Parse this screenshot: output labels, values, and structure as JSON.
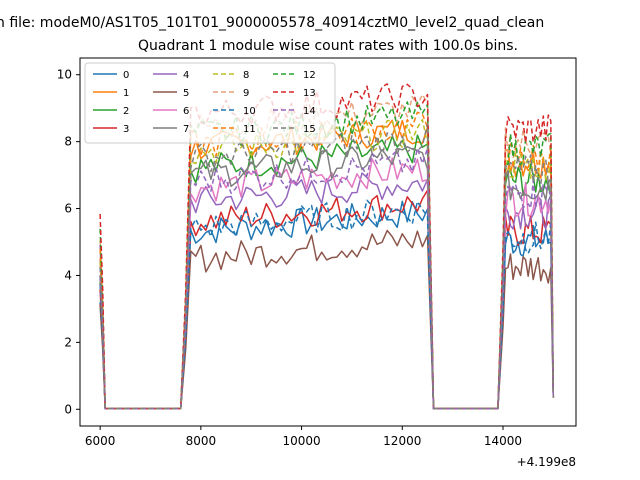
{
  "suptitle": "n file: modeM0/AS1T05_101T01_9000005578_40914cztM0_level2_quad_clean",
  "chart_data": {
    "type": "line",
    "title": "Quadrant 1 module wise count rates with 100.0s bins.",
    "xlabel": "",
    "ylabel": "",
    "x_offset_label": "+4.199e8",
    "xlim": [
      5600,
      15450
    ],
    "ylim": [
      -0.5,
      10.5
    ],
    "xticks": [
      6000,
      8000,
      10000,
      12000,
      14000
    ],
    "yticks": [
      0,
      2,
      4,
      6,
      8,
      10
    ],
    "legend": {
      "placement": "upper-left",
      "ncol": 4
    },
    "segments": [
      {
        "from": 6000,
        "to": 6100,
        "dropTo": 6200
      },
      {
        "from": 7600,
        "to": 12600,
        "riseFrom": 7600
      },
      {
        "from": 13900,
        "to": 15000,
        "riseFrom": 13900
      }
    ],
    "series": [
      {
        "name": "0",
        "color": "#1f77b4",
        "dash": false,
        "level": 5.3,
        "spike": 3.2
      },
      {
        "name": "1",
        "color": "#ff7f0e",
        "dash": false,
        "level": 7.8,
        "spike": 4.0
      },
      {
        "name": "2",
        "color": "#2ca02c",
        "dash": false,
        "level": 7.2,
        "spike": 3.8
      },
      {
        "name": "3",
        "color": "#d62728",
        "dash": false,
        "level": 5.6,
        "spike": 3.4
      },
      {
        "name": "4",
        "color": "#9467bd",
        "dash": false,
        "level": 6.2,
        "spike": 5.0
      },
      {
        "name": "5",
        "color": "#8c564b",
        "dash": false,
        "level": 4.5,
        "spike": 3.0
      },
      {
        "name": "6",
        "color": "#e377c2",
        "dash": false,
        "level": 6.6,
        "spike": 4.4
      },
      {
        "name": "7",
        "color": "#7f7f7f",
        "dash": false,
        "level": 7.0,
        "spike": 4.2
      },
      {
        "name": "8",
        "color": "#bcbd22",
        "dash": true,
        "level": 7.7,
        "spike": 4.6
      },
      {
        "name": "9",
        "color": "#e6a17a",
        "dash": true,
        "level": 8.4,
        "spike": 5.2
      },
      {
        "name": "10",
        "color": "#1f77b4",
        "dash": true,
        "level": 5.4,
        "spike": 3.6
      },
      {
        "name": "11",
        "color": "#ff7f0e",
        "dash": true,
        "level": 7.9,
        "spike": 4.8
      },
      {
        "name": "12",
        "color": "#2ca02c",
        "dash": true,
        "level": 8.2,
        "spike": 5.4
      },
      {
        "name": "13",
        "color": "#d62728",
        "dash": true,
        "level": 8.8,
        "spike": 6.0
      },
      {
        "name": "14",
        "color": "#9467bd",
        "dash": true,
        "level": 6.8,
        "spike": 4.0
      },
      {
        "name": "15",
        "color": "#7f7f7f",
        "dash": true,
        "level": 7.5,
        "spike": 4.4
      }
    ]
  }
}
